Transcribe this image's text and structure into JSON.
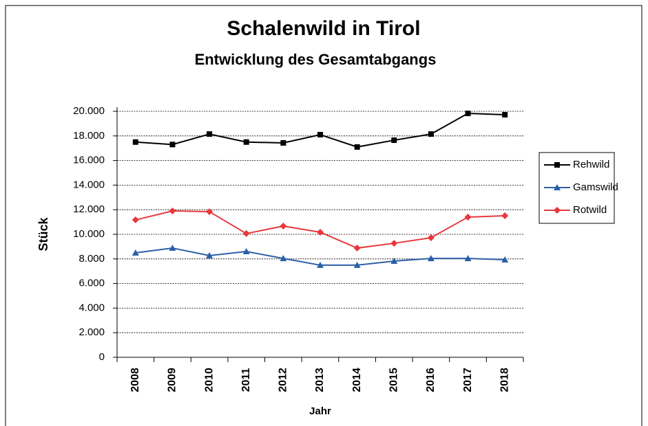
{
  "chart_data": {
    "type": "line",
    "title": "Schalenwild in Tirol",
    "subtitle": "Entwicklung des Gesamtabgangs",
    "x_label": "Jahr",
    "y_label": "Stück",
    "categories": [
      "2008",
      "2009",
      "2010",
      "2011",
      "2012",
      "2013",
      "2014",
      "2015",
      "2016",
      "2017",
      "2018"
    ],
    "series": [
      {
        "name": "Rehwild",
        "color": "#000000",
        "marker": "square",
        "values": [
          17500,
          17300,
          18150,
          17500,
          17430,
          18100,
          17100,
          17650,
          18150,
          19830,
          19720
        ]
      },
      {
        "name": "Gamswild",
        "color": "#2b5ea7",
        "marker": "triangle",
        "values": [
          8490,
          8880,
          8270,
          8600,
          8040,
          7490,
          7490,
          7820,
          8040,
          8040,
          7930
        ]
      },
      {
        "name": "Rotwild",
        "color": "#e8383d",
        "marker": "diamond",
        "values": [
          11170,
          11900,
          11840,
          10060,
          10670,
          10170,
          8880,
          9270,
          9720,
          11400,
          11510
        ]
      }
    ],
    "ylim": [
      0,
      20000
    ],
    "yticks": [
      0,
      {
        "value": 2000,
        "label": "2.000"
      },
      {
        "value": 4000,
        "label": "4.000"
      },
      {
        "value": 6000,
        "label": "6.000"
      },
      {
        "value": 8000,
        "label": "8.000"
      },
      {
        "value": 10000,
        "label": "10.000"
      },
      {
        "value": 12000,
        "label": "12.000"
      },
      {
        "value": 14000,
        "label": "14.000"
      },
      {
        "value": 16000,
        "label": "16.000"
      },
      {
        "value": 18000,
        "label": "18.000"
      },
      {
        "value": 20000,
        "label": "20.000"
      }
    ],
    "grid": true,
    "legend": "right"
  }
}
